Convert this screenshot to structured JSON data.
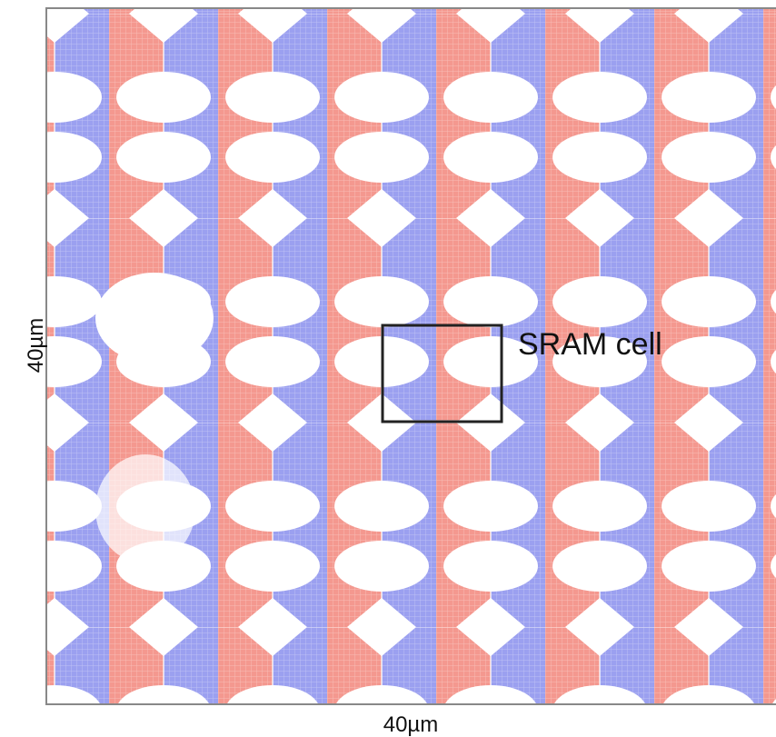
{
  "labels": {
    "y_axis": "40µm",
    "x_axis": "40µm",
    "annotation": "SRAM cell"
  }
}
